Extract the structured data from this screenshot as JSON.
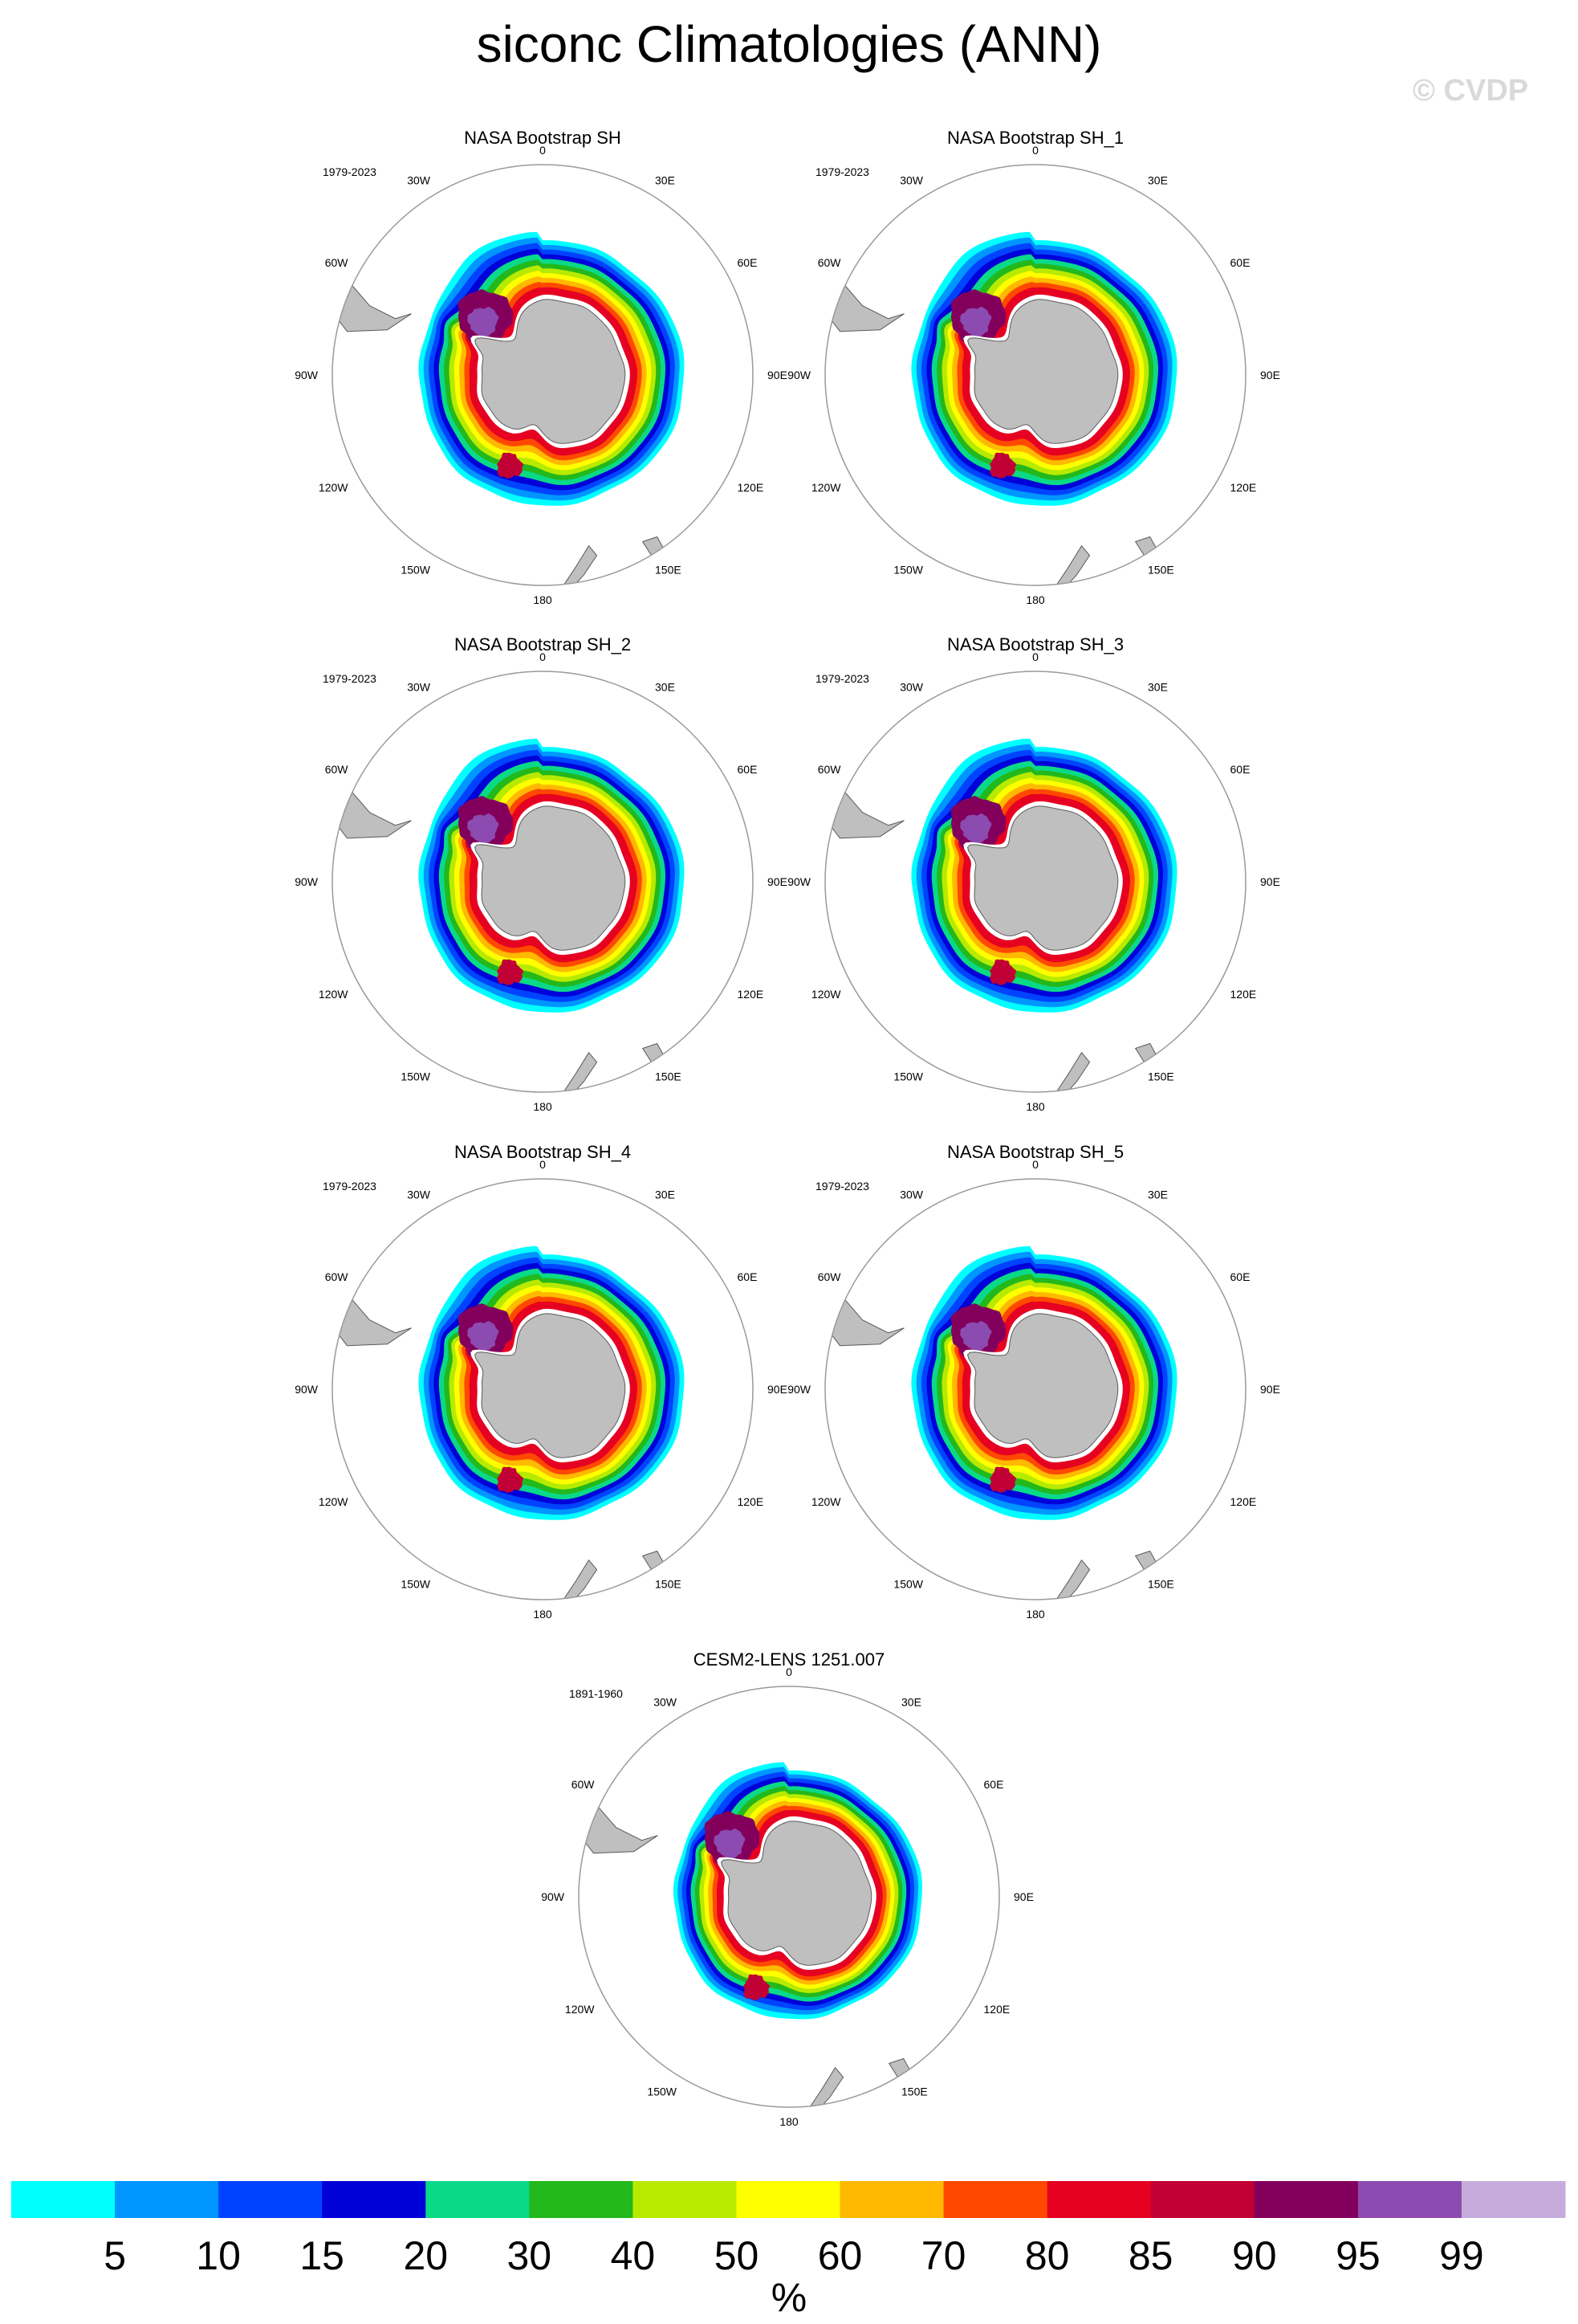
{
  "title": "siconc Climatologies (ANN)",
  "watermark": "© CVDP",
  "panels": [
    {
      "title": "NASA Bootstrap SH",
      "period": "1979-2023",
      "model": "obs"
    },
    {
      "title": "NASA Bootstrap SH_1",
      "period": "1979-2023",
      "model": "obs"
    },
    {
      "title": "NASA Bootstrap SH_2",
      "period": "1979-2023",
      "model": "obs"
    },
    {
      "title": "NASA Bootstrap SH_3",
      "period": "1979-2023",
      "model": "obs"
    },
    {
      "title": "NASA Bootstrap SH_4",
      "period": "1979-2023",
      "model": "obs"
    },
    {
      "title": "NASA Bootstrap SH_5",
      "period": "1979-2023",
      "model": "obs"
    },
    {
      "title": "CESM2-LENS 1251.007",
      "period": "1891-1960",
      "model": "cesm"
    }
  ],
  "lon_labels": [
    "0",
    "30E",
    "60E",
    "90E",
    "120E",
    "150E",
    "180",
    "150W",
    "120W",
    "90W",
    "60W",
    "30W"
  ],
  "colorbar": {
    "unit": "%",
    "labels": [
      "5",
      "10",
      "15",
      "20",
      "30",
      "40",
      "50",
      "60",
      "70",
      "80",
      "85",
      "90",
      "95",
      "99"
    ],
    "colors": [
      "#00ffff",
      "#0096ff",
      "#0043ff",
      "#0000d8",
      "#0ad988",
      "#23b81c",
      "#b8ea00",
      "#ffff00",
      "#ffb900",
      "#ff4800",
      "#e60021",
      "#c10035",
      "#82005c",
      "#8c4bb0",
      "#c6acdc"
    ]
  },
  "colors": {
    "land": "#bfbfbf",
    "coast": "#5a5a5a",
    "frame": "#9a9a9a"
  }
}
